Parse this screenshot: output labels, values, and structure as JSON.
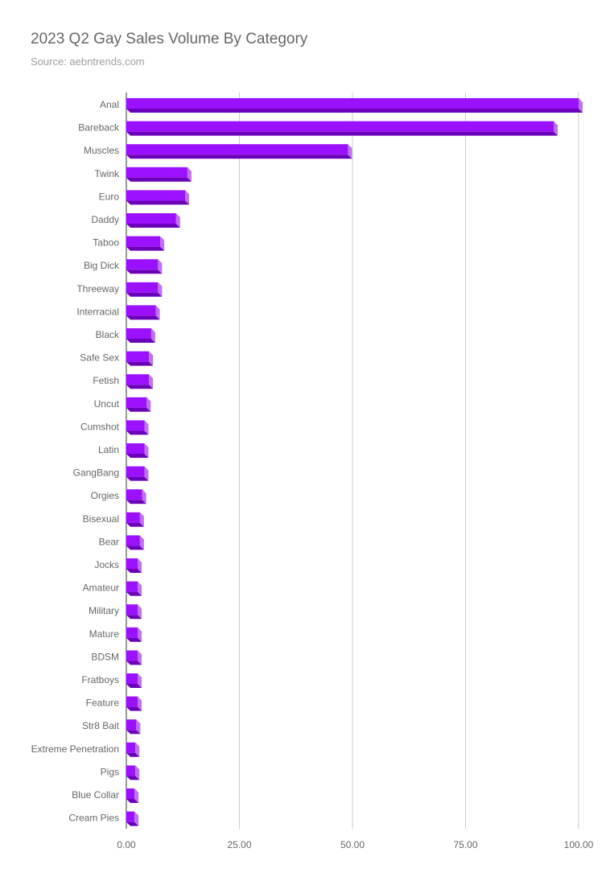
{
  "title": "2023 Q2 Gay Sales Volume By Category",
  "subtitle": "Source: aebntrends.com",
  "colors": {
    "bar_front": "#9b10ff",
    "bar_top": "#b44dff",
    "bar_side": "#c56bff",
    "bar_bottom": "#6a00b8",
    "grid": "#cccccc",
    "axis": "#333333"
  },
  "chart_data": {
    "type": "bar",
    "orientation": "horizontal",
    "style": "3d",
    "title": "2023 Q2 Gay Sales Volume By Category",
    "xlabel": "",
    "ylabel": "",
    "xlim": [
      0,
      100
    ],
    "xticks": [
      "0.00",
      "25.00",
      "50.00",
      "75.00",
      "100.00"
    ],
    "tick_values": [
      0,
      25,
      50,
      75,
      100
    ],
    "grid": true,
    "legend": "none",
    "categories": [
      "Anal",
      "Bareback",
      "Muscles",
      "Twink",
      "Euro",
      "Daddy",
      "Taboo",
      "Big Dick",
      "Threeway",
      "Interracial",
      "Black",
      "Safe Sex",
      "Fetish",
      "Uncut",
      "Cumshot",
      "Latin",
      "GangBang",
      "Orgies",
      "Bisexual",
      "Bear",
      "Jocks",
      "Amateur",
      "Military",
      "Mature",
      "BDSM",
      "Fratboys",
      "Feature",
      "Str8 Bait",
      "Extreme Penetration",
      "Pigs",
      "Blue Collar",
      "Cream Pies"
    ],
    "values": [
      100,
      94.5,
      49,
      13.5,
      13,
      11,
      7.5,
      7,
      7,
      6.5,
      5.5,
      5,
      5,
      4.5,
      4,
      4,
      4,
      3.5,
      3,
      3,
      2.5,
      2.5,
      2.5,
      2.5,
      2.5,
      2.5,
      2.5,
      2.2,
      2,
      2,
      1.8,
      1.8
    ]
  }
}
